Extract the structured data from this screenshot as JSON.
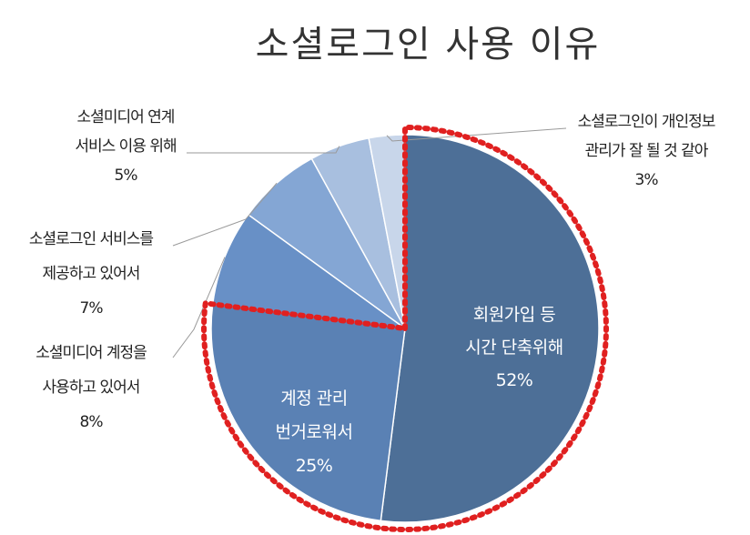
{
  "chart_data": {
    "type": "pie",
    "title": "소셜로그인 사용 이유",
    "slices": [
      {
        "lines": [
          "회원가입 등",
          "시간 단축위해"
        ],
        "value": 52,
        "label": "52%",
        "color": "#4d6f97",
        "text_color": "#ffffff",
        "position": "inside"
      },
      {
        "lines": [
          "계정 관리",
          "번거로워서"
        ],
        "value": 25,
        "label": "25%",
        "color": "#5a81b4",
        "text_color": "#ffffff",
        "position": "inside"
      },
      {
        "lines": [
          "소셜미디어 계정을",
          "사용하고 있어서"
        ],
        "value": 8,
        "label": "8%",
        "color": "#6890c6",
        "text_color": "#222222",
        "position": "outside"
      },
      {
        "lines": [
          "소셜로그인 서비스를",
          "제공하고 있어서"
        ],
        "value": 7,
        "label": "7%",
        "color": "#84a6d4",
        "text_color": "#222222",
        "position": "outside"
      },
      {
        "lines": [
          "소셜미디어 연계",
          "서비스 이용 위해"
        ],
        "value": 5,
        "label": "5%",
        "color": "#a8bfdf",
        "text_color": "#222222",
        "position": "outside"
      },
      {
        "lines": [
          "소셜로그인이 개인정보",
          "관리가 잘 될 것 같아"
        ],
        "value": 3,
        "label": "3%",
        "color": "#c8d6ea",
        "text_color": "#222222",
        "position": "outside"
      }
    ],
    "highlight": {
      "style": "dotted",
      "color": "#e02020",
      "slices": [
        "회원가입 등 시간 단축위해",
        "계정 관리 번거로워서"
      ]
    }
  }
}
